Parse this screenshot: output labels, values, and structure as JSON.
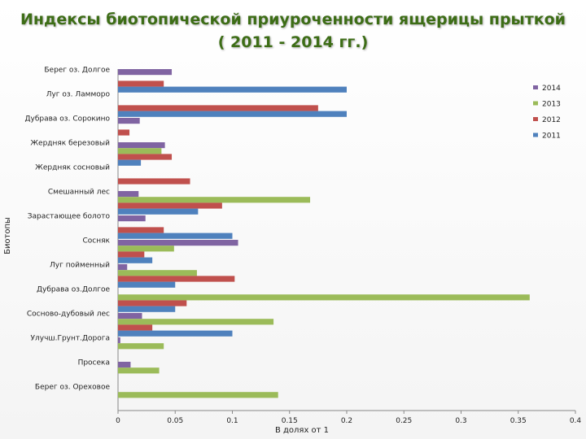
{
  "title_line1": "Индексы биотопической приуроченности ящерицы прыткой",
  "title_line2": "( 2011 - 2014 гг.)",
  "chart_data": {
    "type": "bar",
    "orientation": "horizontal",
    "title": "Индексы биотопической приуроченности ящерицы прыткой ( 2011 - 2014 гг.)",
    "xlabel": "В долях от 1",
    "ylabel": "Биотопы",
    "xlim": [
      0,
      0.4
    ],
    "xticks": [
      "0",
      "0.05",
      "0.1",
      "0.15",
      "0.2",
      "0.25",
      "0.3",
      "0.35",
      "0.4"
    ],
    "legend_position": "right",
    "categories": [
      "Берег оз. Долгое",
      "Луг оз. Ламморо",
      "Дубрава оз. Сорокино",
      "Жердняк березовый",
      "Жердняк сосновый",
      "Смешанный лес",
      "Зарастающее болото",
      "Сосняк",
      "Луг пойменный",
      "Дубрава оз.Долгое",
      "Сосново-дубовый лес",
      "Улучш.Грунт.Дорога",
      "Просека",
      "Берег оз. Ореховое"
    ],
    "series": [
      {
        "name": "2014",
        "color": "#8064a2",
        "values": [
          0.047,
          0,
          0.019,
          0.041,
          0,
          0.018,
          0.024,
          0.105,
          0.008,
          0,
          0.021,
          0.002,
          0.011,
          0
        ]
      },
      {
        "name": "2013",
        "color": "#9bbb59",
        "values": [
          0,
          0,
          0,
          0.038,
          0,
          0.168,
          0,
          0.049,
          0.069,
          0.36,
          0.136,
          0.04,
          0.036,
          0.14
        ]
      },
      {
        "name": "2012",
        "color": "#c0504d",
        "values": [
          0.04,
          0.175,
          0.01,
          0.047,
          0.063,
          0.091,
          0.04,
          0.023,
          0.102,
          0.06,
          0.03,
          0,
          0,
          0
        ]
      },
      {
        "name": "2011",
        "color": "#4f81bd",
        "values": [
          0.2,
          0.2,
          0,
          0.02,
          0,
          0.07,
          0.1,
          0.03,
          0.05,
          0.05,
          0.1,
          0,
          0,
          0
        ]
      }
    ]
  }
}
